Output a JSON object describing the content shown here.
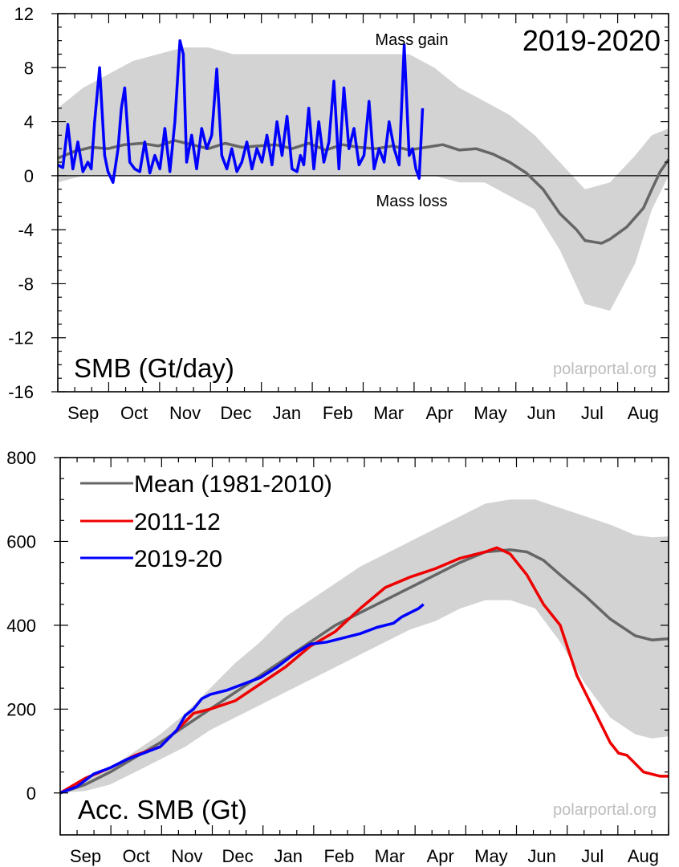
{
  "chart_data": [
    {
      "type": "line",
      "title": "2019-2020",
      "panel_label": "SMB (Gt/day)",
      "watermark": "polarportal.org",
      "annotations": {
        "gain": "Mass gain",
        "loss": "Mass loss"
      },
      "months": [
        "Sep",
        "Oct",
        "Nov",
        "Dec",
        "Jan",
        "Feb",
        "Mar",
        "Apr",
        "May",
        "Jun",
        "Jul",
        "Aug"
      ],
      "ylim": [
        -16,
        12
      ],
      "yticks": [
        "12",
        "8",
        "4",
        "0",
        "-4",
        "-8",
        "-12",
        "-16"
      ],
      "ytick_values": [
        12,
        8,
        4,
        0,
        -4,
        -8,
        -12,
        -16
      ],
      "x_unit": "day of season (day 0 = 1 Sep)",
      "xlim": [
        0,
        365
      ],
      "zero_line": true,
      "colors": {
        "band": "#d3d3d3",
        "mean": "#666666",
        "current": "#0000ff"
      },
      "band": {
        "x": [
          0,
          15,
          30,
          45,
          60,
          75,
          90,
          105,
          120,
          135,
          150,
          165,
          180,
          195,
          210,
          225,
          240,
          255,
          270,
          285,
          300,
          315,
          330,
          345,
          355,
          365
        ],
        "upper": [
          5.0,
          6.5,
          7.5,
          8.5,
          9.0,
          9.5,
          9.5,
          9.0,
          9.0,
          9.0,
          9.0,
          9.0,
          9.0,
          9.0,
          9.0,
          8.0,
          6.5,
          5.5,
          4.5,
          3.0,
          1.0,
          -1.0,
          -0.5,
          1.5,
          3.0,
          3.5
        ],
        "lower": [
          -0.5,
          0,
          0,
          0,
          0,
          0,
          0,
          0,
          0,
          0,
          0,
          0,
          0,
          0,
          0,
          0,
          -0.5,
          -0.5,
          -1.5,
          -2.5,
          -5.5,
          -9.5,
          -10.0,
          -6.5,
          -2.5,
          0
        ]
      },
      "series": [
        {
          "name": "Mean (1981-2010)",
          "x": [
            0,
            10,
            20,
            30,
            40,
            50,
            60,
            70,
            80,
            90,
            100,
            110,
            120,
            130,
            140,
            150,
            160,
            170,
            180,
            190,
            200,
            210,
            220,
            230,
            240,
            250,
            260,
            270,
            280,
            290,
            300,
            310,
            315,
            320,
            325,
            330,
            340,
            350,
            355,
            360,
            365
          ],
          "y": [
            1.3,
            1.8,
            2.1,
            2.0,
            2.3,
            2.4,
            2.2,
            2.6,
            2.3,
            2.0,
            2.4,
            2.1,
            2.2,
            2.3,
            2.0,
            2.4,
            1.9,
            2.3,
            2.1,
            2.0,
            2.2,
            1.9,
            2.1,
            2.3,
            1.9,
            2.0,
            1.6,
            1.0,
            0.2,
            -1.0,
            -2.8,
            -4.0,
            -4.8,
            -4.9,
            -5.0,
            -4.7,
            -3.8,
            -2.4,
            -1.0,
            0.3,
            1.2
          ]
        },
        {
          "name": "2019-20",
          "x": [
            0,
            3,
            6,
            9,
            12,
            15,
            18,
            20,
            22,
            25,
            28,
            30,
            33,
            36,
            38,
            40,
            43,
            46,
            49,
            52,
            55,
            58,
            61,
            64,
            67,
            70,
            73,
            75,
            77,
            80,
            83,
            86,
            89,
            92,
            95,
            98,
            101,
            104,
            107,
            110,
            113,
            116,
            119,
            122,
            125,
            128,
            131,
            134,
            137,
            140,
            143,
            145,
            147,
            150,
            153,
            156,
            159,
            162,
            165,
            168,
            171,
            174,
            177,
            180,
            183,
            186,
            189,
            192,
            195,
            198,
            201,
            204,
            207,
            210,
            212,
            214,
            216,
            218
          ],
          "y": [
            0.8,
            0.6,
            3.8,
            0.5,
            2.5,
            0.3,
            1.0,
            0.5,
            4.0,
            8.0,
            1.5,
            0.3,
            -0.5,
            2.0,
            5.0,
            6.5,
            1.0,
            0.5,
            0.3,
            2.5,
            0.2,
            1.5,
            0.5,
            3.5,
            0.3,
            4.0,
            10.0,
            9.0,
            1.0,
            3.0,
            0.5,
            3.5,
            2.0,
            3.0,
            7.9,
            1.5,
            0.5,
            2.0,
            0.3,
            1.0,
            2.5,
            0.5,
            2.0,
            1.0,
            3.0,
            0.8,
            4.0,
            1.5,
            4.4,
            0.5,
            0.3,
            1.5,
            0.8,
            5.0,
            0.5,
            4.0,
            1.0,
            2.5,
            7.0,
            0.5,
            6.5,
            2.0,
            3.5,
            0.8,
            1.5,
            5.5,
            0.5,
            2.0,
            1.0,
            4.0,
            2.0,
            0.8,
            9.7,
            1.5,
            2.0,
            0.5,
            -0.2,
            5.0
          ]
        }
      ]
    },
    {
      "type": "line",
      "panel_label": "Acc. SMB (Gt)",
      "watermark": "polarportal.org",
      "months": [
        "Sep",
        "Oct",
        "Nov",
        "Dec",
        "Jan",
        "Feb",
        "Mar",
        "Apr",
        "May",
        "Jun",
        "Jul",
        "Aug"
      ],
      "ylim": [
        -100,
        800
      ],
      "yticks": [
        "800",
        "600",
        "400",
        "200",
        "0"
      ],
      "ytick_values": [
        800,
        600,
        400,
        200,
        0
      ],
      "x_unit": "day of season (day 0 = 1 Sep)",
      "xlim": [
        0,
        365
      ],
      "legend_position": "top-left",
      "colors": {
        "band": "#d3d3d3",
        "mean": "#666666",
        "2011-12": "#ee0000",
        "2019-20": "#0000ff"
      },
      "band": {
        "x": [
          0,
          15,
          30,
          45,
          60,
          75,
          90,
          105,
          120,
          135,
          150,
          165,
          180,
          195,
          210,
          225,
          240,
          255,
          270,
          285,
          300,
          315,
          330,
          345,
          355,
          365
        ],
        "upper": [
          0,
          30,
          60,
          100,
          140,
          190,
          250,
          310,
          360,
          420,
          460,
          500,
          540,
          570,
          600,
          630,
          660,
          690,
          700,
          700,
          680,
          660,
          640,
          615,
          610,
          612
        ],
        "lower": [
          0,
          5,
          20,
          50,
          80,
          110,
          150,
          180,
          210,
          240,
          270,
          300,
          330,
          360,
          390,
          410,
          440,
          460,
          460,
          440,
          360,
          260,
          180,
          140,
          130,
          135
        ]
      },
      "series": [
        {
          "name": "Mean (1981-2010)",
          "x": [
            0,
            15,
            30,
            45,
            60,
            75,
            90,
            105,
            120,
            135,
            150,
            165,
            180,
            195,
            210,
            225,
            240,
            255,
            270,
            280,
            290,
            300,
            315,
            330,
            345,
            355,
            365
          ],
          "y": [
            0,
            20,
            50,
            85,
            120,
            160,
            200,
            240,
            280,
            320,
            360,
            400,
            430,
            460,
            490,
            520,
            550,
            575,
            580,
            575,
            555,
            520,
            470,
            415,
            375,
            365,
            368
          ]
        },
        {
          "name": "2011-12",
          "x": [
            0,
            15,
            30,
            45,
            60,
            75,
            80,
            90,
            105,
            120,
            135,
            150,
            165,
            180,
            195,
            210,
            225,
            240,
            255,
            262,
            270,
            280,
            290,
            300,
            310,
            320,
            330,
            335,
            340,
            345,
            350,
            360,
            365
          ],
          "y": [
            0,
            35,
            60,
            90,
            110,
            170,
            190,
            200,
            220,
            260,
            300,
            350,
            385,
            440,
            490,
            515,
            535,
            560,
            575,
            585,
            570,
            520,
            450,
            400,
            280,
            200,
            120,
            95,
            90,
            70,
            50,
            40,
            40
          ]
        },
        {
          "name": "2019-20",
          "x": [
            0,
            10,
            20,
            30,
            40,
            50,
            60,
            70,
            75,
            80,
            85,
            90,
            100,
            110,
            120,
            130,
            140,
            150,
            160,
            170,
            180,
            190,
            200,
            205,
            210,
            215,
            218
          ],
          "y": [
            0,
            15,
            45,
            60,
            80,
            95,
            110,
            150,
            185,
            200,
            225,
            235,
            245,
            260,
            275,
            300,
            330,
            355,
            360,
            370,
            380,
            395,
            405,
            420,
            430,
            440,
            450
          ]
        }
      ]
    }
  ]
}
